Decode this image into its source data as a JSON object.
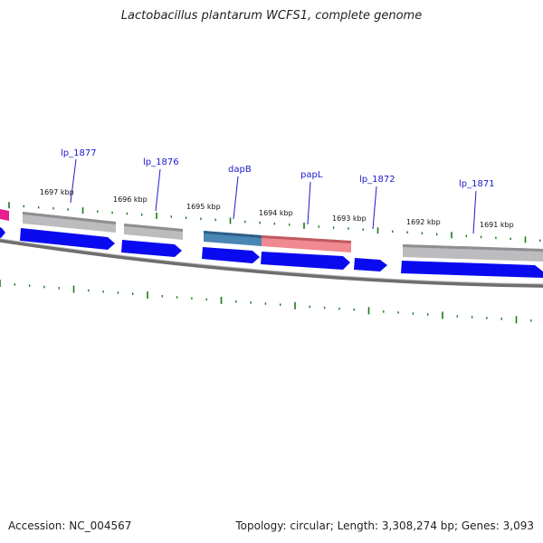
{
  "title": "Lactobacillus plantarum WCFS1, complete genome",
  "footer": {
    "accession": "Accession: NC_004567",
    "topology": "Topology: circular; Length: 3,308,274 bp; Genes: 3,093"
  },
  "kbp_markers": [
    {
      "label": "1697 kbp"
    },
    {
      "label": "1696 kbp"
    },
    {
      "label": "1695 kbp"
    },
    {
      "label": "1694 kbp"
    },
    {
      "label": "1693 kbp"
    },
    {
      "label": "1692 kbp"
    },
    {
      "label": "1691 kbp"
    }
  ],
  "gene_labels": [
    {
      "name": "lp_1877"
    },
    {
      "name": "lp_1876"
    },
    {
      "name": "dapB"
    },
    {
      "name": "papL"
    },
    {
      "name": "lp_1872"
    },
    {
      "name": "lp_1871"
    }
  ],
  "colors": {
    "cds": "#0a0af0",
    "gray_feature": "#b7b7b9",
    "blue_feature": "#4a86b4",
    "red_feature": "#f08a90",
    "pink_feature": "#e61f8c",
    "tick": "#1a7a1a",
    "backbone": "#6a6a6a",
    "label_line": "#1a1acc"
  }
}
